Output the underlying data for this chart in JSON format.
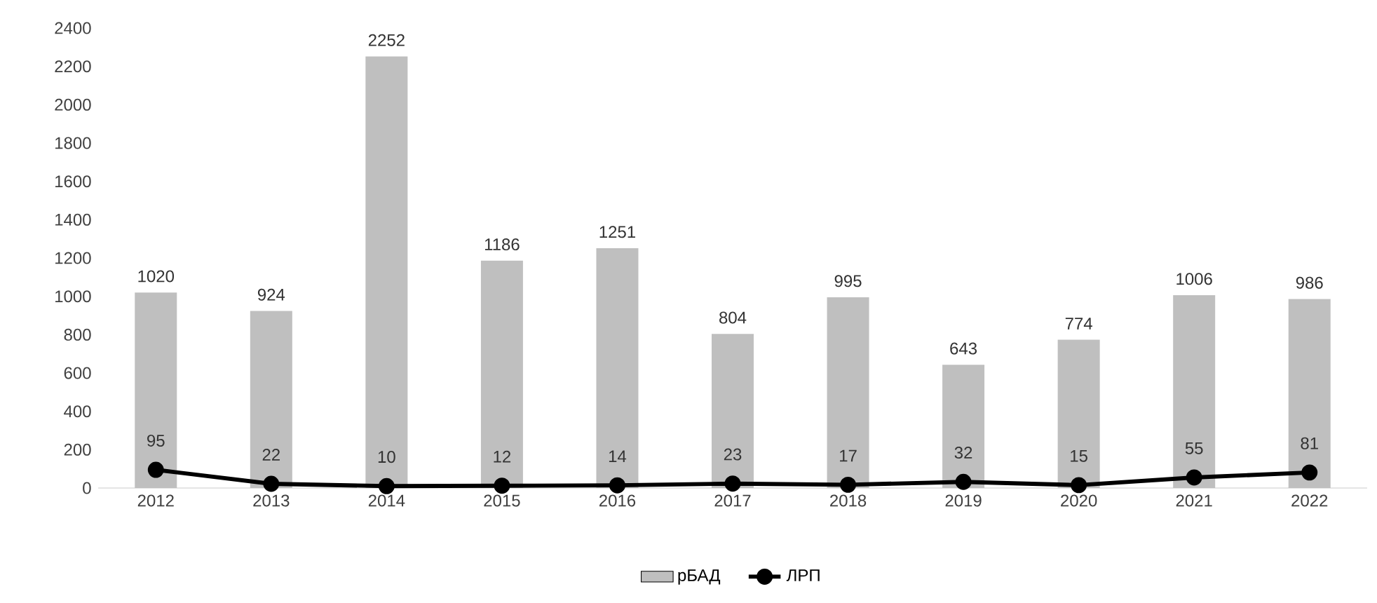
{
  "chart_data": {
    "type": "bar",
    "categories": [
      "2012",
      "2013",
      "2014",
      "2015",
      "2016",
      "2017",
      "2018",
      "2019",
      "2020",
      "2021",
      "2022"
    ],
    "series": [
      {
        "name": "рБАД",
        "color": "#bfbfbf",
        "values": [
          1020,
          924,
          2252,
          1186,
          1251,
          804,
          995,
          643,
          774,
          1006,
          986
        ]
      },
      {
        "name": "ЛРП",
        "type": "line",
        "color": "#000000",
        "marker": "circle",
        "line_style": "solid",
        "values": [
          95,
          22,
          10,
          12,
          14,
          23,
          17,
          32,
          15,
          55,
          81
        ]
      }
    ],
    "ylim": [
      0,
      2400
    ],
    "yticks": [
      0,
      200,
      400,
      600,
      800,
      1000,
      1200,
      1400,
      1600,
      1800,
      2000,
      2200,
      2400
    ],
    "data_labels": true,
    "grid": false,
    "legend": "bottom"
  }
}
